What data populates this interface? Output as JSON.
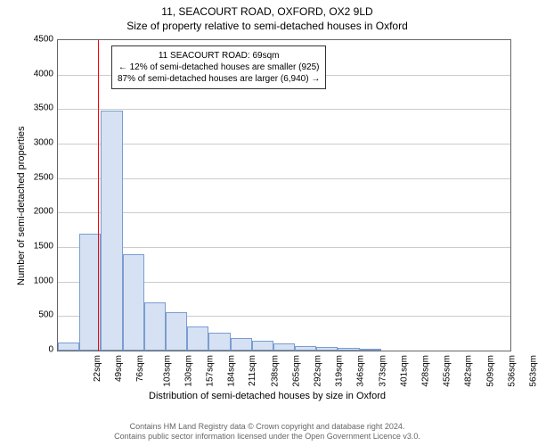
{
  "title1": "11, SEACOURT ROAD, OXFORD, OX2 9LD",
  "title2": "Size of property relative to semi-detached houses in Oxford",
  "y_axis_label": "Number of semi-detached properties",
  "x_axis_label": "Distribution of semi-detached houses by size in Oxford",
  "chart": {
    "type": "histogram",
    "xlim_pixels": 510,
    "ylim": [
      0,
      4500
    ],
    "ytick_step": 500,
    "y_ticks": [
      0,
      500,
      1000,
      1500,
      2000,
      2500,
      3000,
      3500,
      4000,
      4500
    ],
    "x_ticks": [
      "22sqm",
      "49sqm",
      "76sqm",
      "103sqm",
      "130sqm",
      "157sqm",
      "184sqm",
      "211sqm",
      "238sqm",
      "265sqm",
      "292sqm",
      "319sqm",
      "346sqm",
      "373sqm",
      "401sqm",
      "428sqm",
      "455sqm",
      "482sqm",
      "509sqm",
      "536sqm",
      "563sqm"
    ],
    "bar_values": [
      120,
      1700,
      3480,
      1400,
      700,
      550,
      350,
      260,
      180,
      140,
      100,
      60,
      50,
      40,
      30,
      0,
      0,
      0,
      0,
      0,
      0
    ],
    "bar_fill": "#d6e2f3",
    "bar_border": "#7a9cd1",
    "grid_color": "#cccccc",
    "border_color": "#666666",
    "background_color": "#ffffff",
    "ref_line_x_index": 1.85,
    "ref_line_color": "#ff0000"
  },
  "info_box": {
    "line1": "11 SEACOURT ROAD: 69sqm",
    "line2": "← 12% of semi-detached houses are smaller (925)",
    "line3": "87% of semi-detached houses are larger (6,940) →"
  },
  "footer_line1": "Contains HM Land Registry data © Crown copyright and database right 2024.",
  "footer_line2": "Contains public sector information licensed under the Open Government Licence v3.0."
}
